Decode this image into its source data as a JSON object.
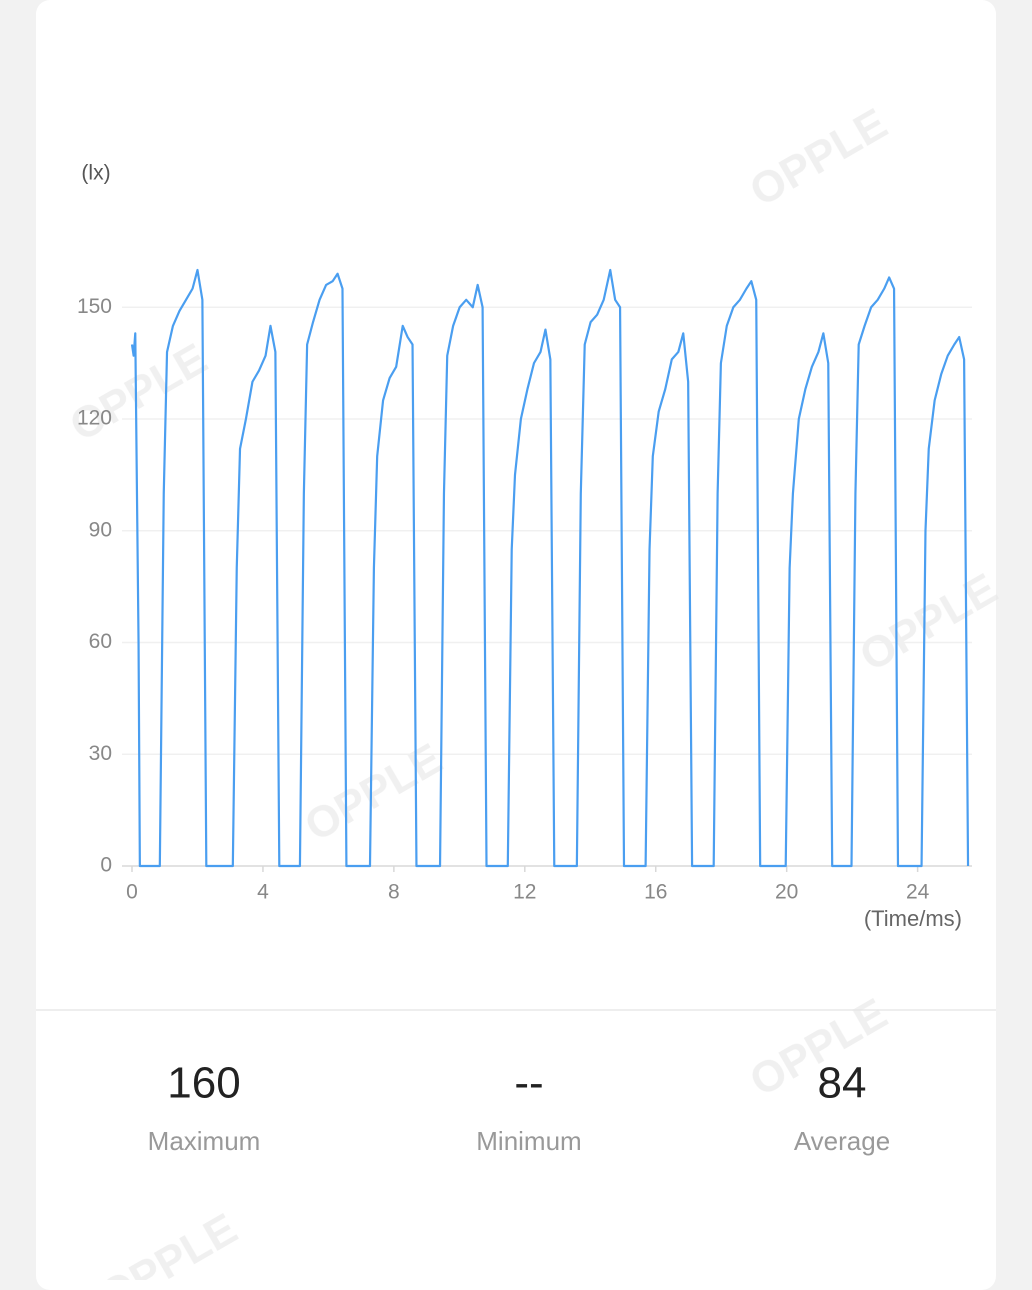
{
  "chart_data": {
    "type": "line",
    "y_unit": "(lx)",
    "x_label": "(Time/ms)",
    "xlim": [
      0,
      25.6
    ],
    "ylim": [
      0,
      160
    ],
    "xticks": [
      0,
      4,
      8,
      12,
      16,
      20,
      24
    ],
    "yticks": [
      0,
      30,
      60,
      90,
      120,
      150
    ],
    "grid": true,
    "x": [
      0,
      0.05,
      0.1,
      0.2,
      0.24,
      0.85,
      0.97,
      1.07,
      1.25,
      1.45,
      1.65,
      1.85,
      2.0,
      2.15,
      2.27,
      3.08,
      3.2,
      3.3,
      3.48,
      3.68,
      3.88,
      4.08,
      4.23,
      4.38,
      4.5,
      5.13,
      5.25,
      5.35,
      5.53,
      5.73,
      5.93,
      6.13,
      6.28,
      6.43,
      6.55,
      7.27,
      7.39,
      7.49,
      7.67,
      7.87,
      8.07,
      8.27,
      8.42,
      8.57,
      8.69,
      9.41,
      9.53,
      9.63,
      9.81,
      10.01,
      10.21,
      10.41,
      10.56,
      10.71,
      10.83,
      11.48,
      11.6,
      11.7,
      11.88,
      12.08,
      12.28,
      12.48,
      12.63,
      12.78,
      12.9,
      13.59,
      13.71,
      13.83,
      14.01,
      14.21,
      14.41,
      14.61,
      14.76,
      14.91,
      15.03,
      15.69,
      15.81,
      15.91,
      16.09,
      16.29,
      16.49,
      16.69,
      16.84,
      16.99,
      17.11,
      17.77,
      17.89,
      17.99,
      18.17,
      18.37,
      18.57,
      18.77,
      18.92,
      19.07,
      19.19,
      19.97,
      20.09,
      20.19,
      20.37,
      20.57,
      20.77,
      20.97,
      21.12,
      21.27,
      21.39,
      21.98,
      22.1,
      22.2,
      22.38,
      22.58,
      22.78,
      22.98,
      23.13,
      23.28,
      23.4,
      24.12,
      24.24,
      24.34,
      24.52,
      24.72,
      24.92,
      25.12,
      25.27,
      25.42,
      25.54
    ],
    "series": [
      {
        "color": "#4a9ef0",
        "values": [
          140,
          137,
          143,
          60,
          0,
          0,
          100,
          138,
          145,
          149,
          152,
          155,
          160,
          152,
          0,
          0,
          80,
          112,
          120,
          130,
          133,
          137,
          145,
          138,
          0,
          0,
          100,
          140,
          146,
          152,
          156,
          157,
          159,
          155,
          0,
          0,
          80,
          110,
          125,
          131,
          134,
          145,
          142,
          140,
          0,
          0,
          100,
          137,
          145,
          150,
          152,
          150,
          156,
          150,
          0,
          0,
          85,
          105,
          120,
          128,
          135,
          138,
          144,
          136,
          0,
          0,
          100,
          140,
          146,
          148,
          152,
          160,
          152,
          150,
          0,
          0,
          85,
          110,
          122,
          128,
          136,
          138,
          143,
          130,
          0,
          0,
          100,
          135,
          145,
          150,
          152,
          155,
          157,
          152,
          0,
          0,
          80,
          100,
          120,
          128,
          134,
          138,
          143,
          135,
          0,
          0,
          100,
          140,
          145,
          150,
          152,
          155,
          158,
          155,
          0,
          0,
          90,
          112,
          125,
          132,
          137,
          140,
          142,
          136,
          0
        ]
      }
    ]
  },
  "watermark": "OPPLE",
  "stats": [
    {
      "value": 160,
      "label": "Maximum"
    },
    {
      "value": "--",
      "label": "Minimum"
    },
    {
      "value": 84,
      "label": "Average"
    }
  ]
}
